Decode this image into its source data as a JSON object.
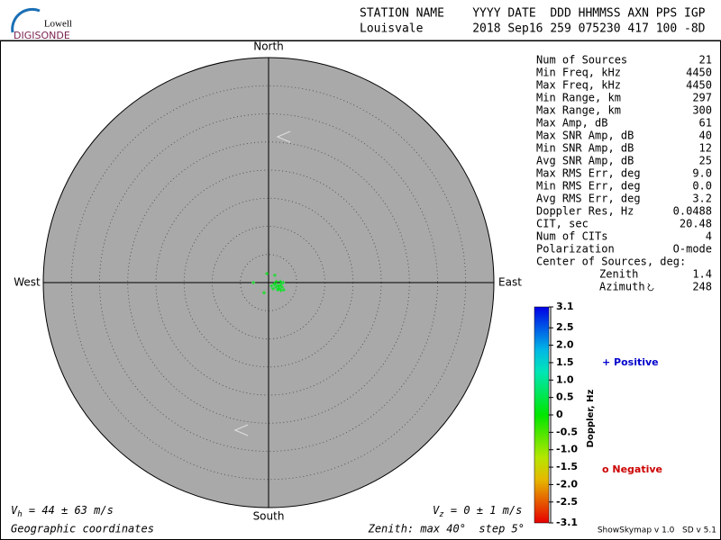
{
  "chart_data": {
    "type": "skymap",
    "logo": {
      "top": "Lowell",
      "bottom": "DIGISONDE"
    },
    "header": {
      "line1": "STATION NAME    YYYY DATE  DDD HHMMSS AXN PPS IGP",
      "line2": "Louisvale       2018 Sep16 259 075230 417 100 -8D"
    },
    "directions": {
      "north": "North",
      "south": "South",
      "east": "East",
      "west": "West"
    },
    "rlim": [
      0,
      40
    ],
    "rticks": [
      5,
      10,
      15,
      20,
      25,
      30,
      35
    ],
    "sources": {
      "x": [
        1.1,
        1.6,
        1.9,
        2.2,
        1.8,
        2.4,
        1.3,
        2.1,
        1.4,
        2.7,
        0.8,
        -0.3,
        1.1,
        -2.7,
        -0.8,
        2.6,
        1.9,
        1.6,
        2.2,
        1.0,
        0.5
      ],
      "y": [
        -0.2,
        -0.5,
        -0.6,
        -0.3,
        -1.0,
        -0.8,
        -0.8,
        0.2,
        0.2,
        -1.3,
        -1.1,
        1.6,
        1.3,
        0.0,
        -1.8,
        0.0,
        -1.1,
        -1.3,
        -1.4,
        -0.3,
        -0.6
      ],
      "doppler": [
        0.2,
        0.2,
        0.1,
        0.2,
        0.2,
        0.1,
        0.2,
        0.2,
        0.1,
        0.2,
        0.2,
        0.1,
        0.2,
        0.2,
        0.1,
        0.2,
        0.2,
        0.2,
        0.1,
        0.2,
        0.2
      ]
    },
    "stats": [
      {
        "label": "Num of Sources",
        "value": 21
      },
      {
        "label": "Min Freq, kHz",
        "value": 4450
      },
      {
        "label": "Max Freq, kHz",
        "value": 4450
      },
      {
        "label": "Min Range, km",
        "value": 297
      },
      {
        "label": "Max Range, km",
        "value": 300
      },
      {
        "label": "Max Amp, dB",
        "value": 61
      },
      {
        "label": "Max SNR Amp, dB",
        "value": 40
      },
      {
        "label": "Min SNR Amp, dB",
        "value": 12
      },
      {
        "label": "Avg SNR Amp, dB",
        "value": 25
      },
      {
        "label": "Max RMS Err, deg",
        "value": "9.0"
      },
      {
        "label": "Min RMS Err, deg",
        "value": "0.0"
      },
      {
        "label": "Avg RMS Err, deg",
        "value": 3.2
      },
      {
        "label": "Doppler Res, Hz",
        "value": 0.0488
      },
      {
        "label": "CIT, sec",
        "value": 20.48
      },
      {
        "label": "Num of CITs",
        "value": 4
      },
      {
        "label": "Polarization",
        "value": "O-mode"
      }
    ],
    "center": {
      "title": "Center of Sources, deg:",
      "zenith_label": "Zenith",
      "zenith": 1.4,
      "azimuth_label": "Azimuth",
      "azimuth": 248
    },
    "colorbar": {
      "title": "Doppler, Hz",
      "clim": [
        -3.1,
        3.1
      ],
      "ticks": [
        3.1,
        2.5,
        {
          "value": 2,
          "label": "2.0"
        },
        1.5,
        {
          "value": 1,
          "label": "1.0"
        },
        0.5,
        0,
        -0.5,
        {
          "value": -1,
          "label": "-1.0"
        },
        -1.5,
        {
          "value": -2,
          "label": "-2.0"
        },
        -2.5,
        -3.1
      ]
    },
    "legend": {
      "positive": "+ Positive",
      "negative": "o Negative"
    },
    "vh": {
      "symbol": "V",
      "sub": "h",
      "text": " = 44 ± 63 m/s"
    },
    "vz": {
      "symbol": "V",
      "sub": "z",
      "text": " = 0 ± 1 m/s"
    },
    "footer": {
      "coords": "Geographic coordinates",
      "zenith": "Zenith: max 40°  step 5°",
      "version": "ShowSkymap v 1.0   SD v 5.1"
    }
  }
}
